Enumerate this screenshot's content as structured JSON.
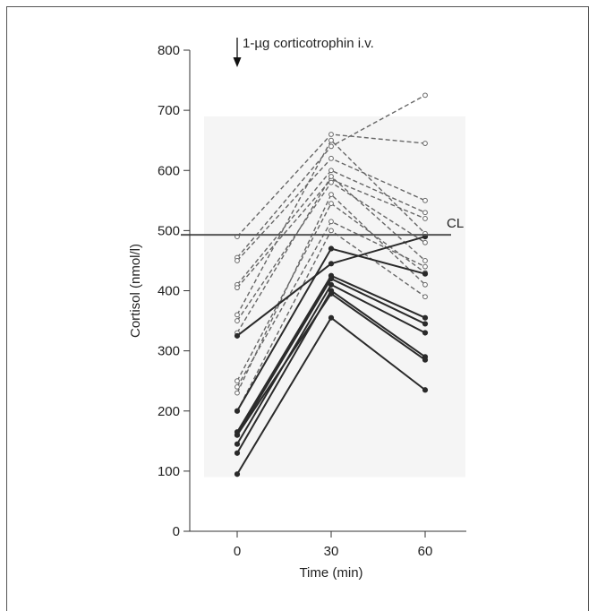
{
  "chart_data": {
    "type": "line",
    "title": "",
    "xlabel": "Time (min)",
    "ylabel": "Cortisol (nmol/l)",
    "x": [
      0,
      30,
      60
    ],
    "x_ticks": [
      0,
      30,
      60
    ],
    "xlim": [
      -7,
      80
    ],
    "y_ticks": [
      0,
      100,
      200,
      300,
      400,
      500,
      600,
      700,
      800
    ],
    "ylim": [
      0,
      800
    ],
    "grid": false,
    "reference_line": {
      "label": "CL",
      "value": 493
    },
    "annotation": {
      "text": "1-µg corticotrophin i.v.",
      "x": 0
    },
    "colors": {
      "normal": "#666666",
      "subnormal": "#2a2a2a",
      "axis": "#333333",
      "shade": "#f5f5f5",
      "cl": "#555555"
    },
    "series_groups": [
      {
        "style": "dashed-open-markers",
        "series": [
          {
            "values": [
              490,
              660,
              645
            ]
          },
          {
            "values": [
              455,
              640,
              725
            ]
          },
          {
            "values": [
              450,
              620,
              550
            ]
          },
          {
            "values": [
              410,
              600,
              530
            ]
          },
          {
            "values": [
              405,
              585,
              520
            ]
          },
          {
            "values": [
              360,
              650,
              495
            ]
          },
          {
            "values": [
              350,
              580,
              480
            ]
          },
          {
            "values": [
              330,
              590,
              450
            ]
          },
          {
            "values": [
              250,
              545,
              430
            ]
          },
          {
            "values": [
              240,
              515,
              440
            ]
          },
          {
            "values": [
              230,
              560,
              410
            ]
          },
          {
            "values": [
              200,
              500,
              390
            ]
          }
        ]
      },
      {
        "style": "solid-filled-markers",
        "series": [
          {
            "values": [
              325,
              445,
              490
            ]
          },
          {
            "values": [
              200,
              470,
              428
            ]
          },
          {
            "values": [
              165,
              425,
              355
            ]
          },
          {
            "values": [
              160,
              420,
              345
            ]
          },
          {
            "values": [
              145,
              410,
              330
            ]
          },
          {
            "values": [
              130,
              400,
              290
            ]
          },
          {
            "values": [
              160,
              395,
              285
            ]
          },
          {
            "values": [
              95,
              355,
              235
            ]
          }
        ]
      }
    ]
  }
}
